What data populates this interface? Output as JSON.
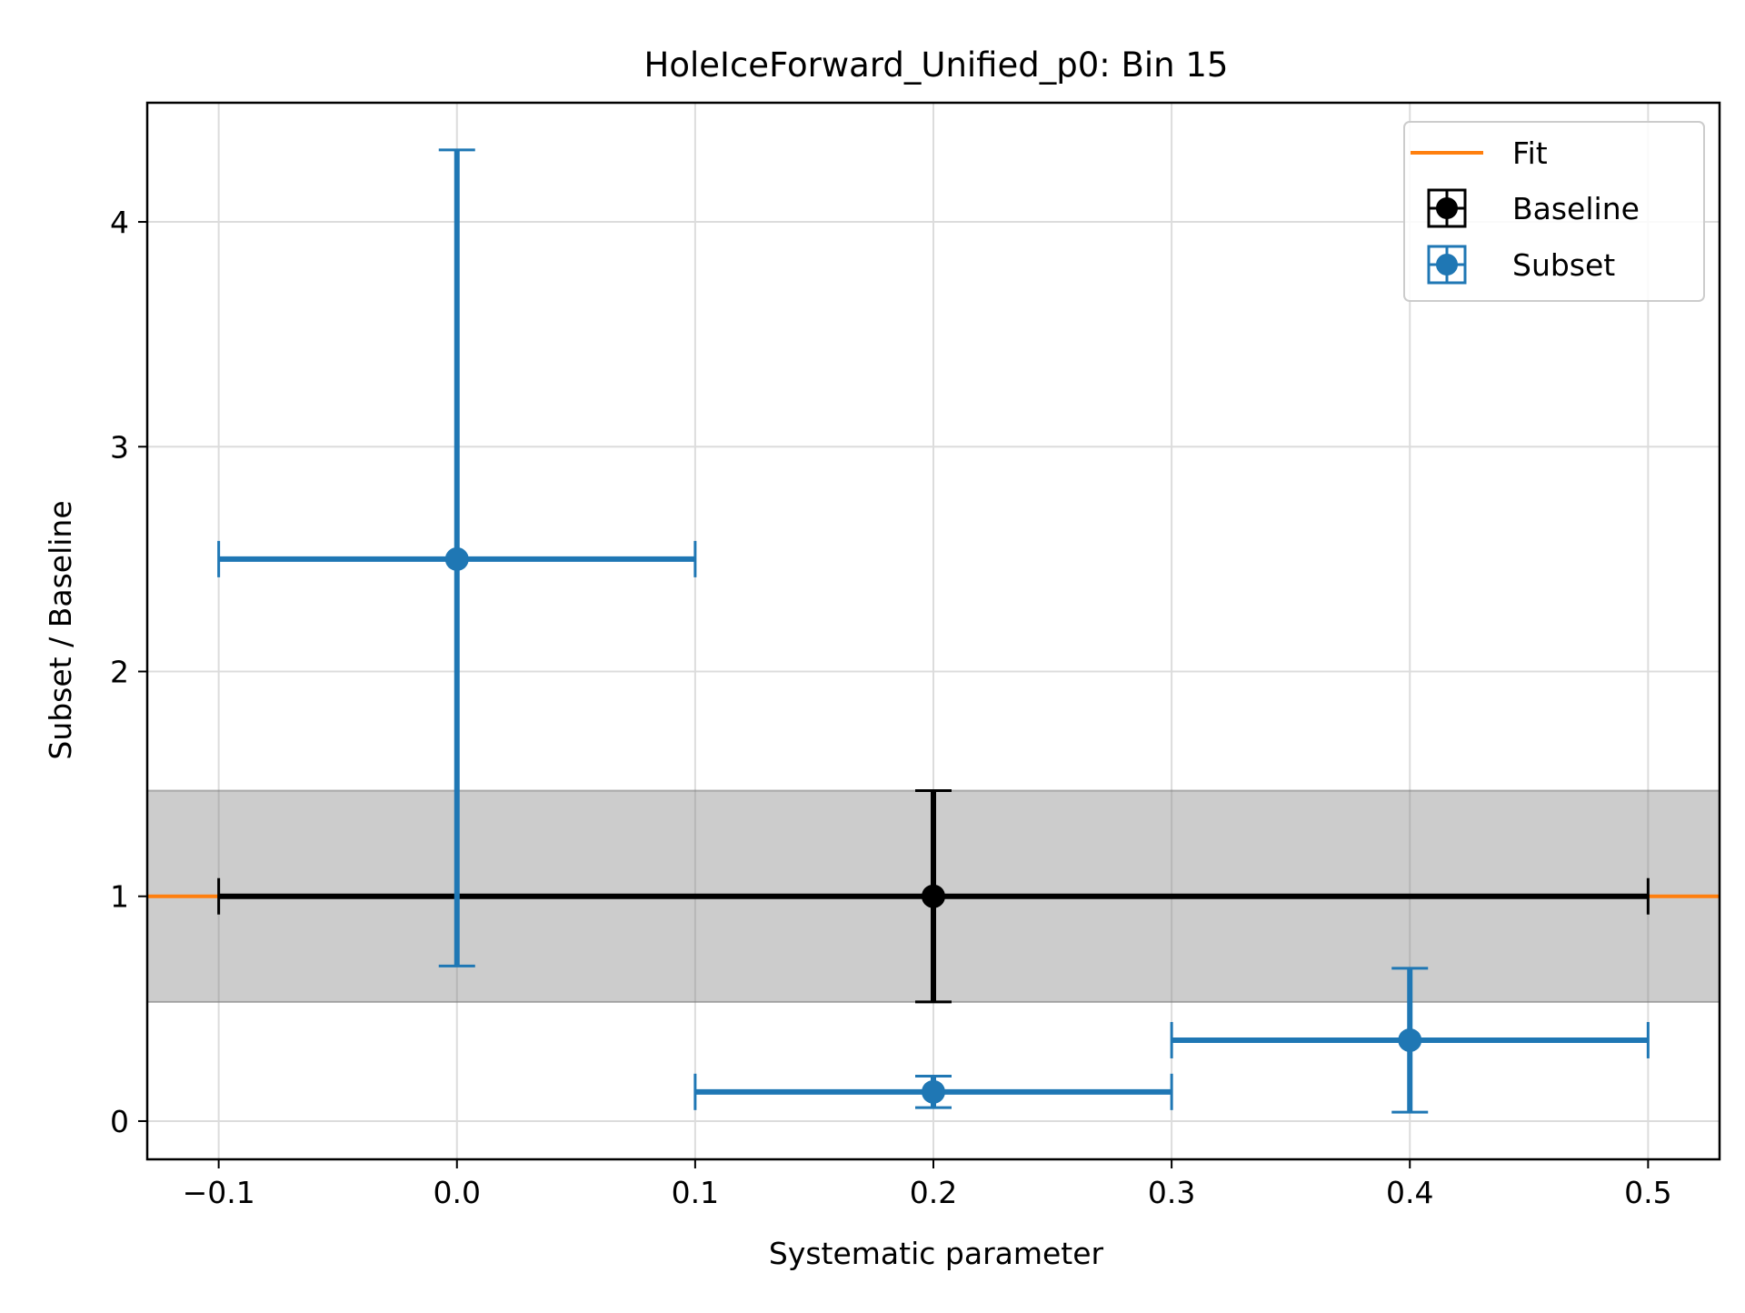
{
  "chart_data": {
    "type": "scatter",
    "title": "HoleIceForward_Unified_p0: Bin 15",
    "xlabel": "Systematic parameter",
    "ylabel": "Subset / Baseline",
    "xlim": [
      -0.13,
      0.53
    ],
    "ylim": [
      -0.17,
      4.53
    ],
    "xticks": [
      {
        "value": -0.1,
        "label": "−0.1"
      },
      {
        "value": 0.0,
        "label": "0.0"
      },
      {
        "value": 0.1,
        "label": "0.1"
      },
      {
        "value": 0.2,
        "label": "0.2"
      },
      {
        "value": 0.3,
        "label": "0.3"
      },
      {
        "value": 0.4,
        "label": "0.4"
      },
      {
        "value": 0.5,
        "label": "0.5"
      }
    ],
    "yticks": [
      {
        "value": 0,
        "label": "0"
      },
      {
        "value": 1,
        "label": "1"
      },
      {
        "value": 2,
        "label": "2"
      },
      {
        "value": 3,
        "label": "3"
      },
      {
        "value": 4,
        "label": "4"
      }
    ],
    "grid": true,
    "legend_position": "top-right",
    "legend": [
      {
        "label": "Fit",
        "kind": "line",
        "color": "#ff7f0e"
      },
      {
        "label": "Baseline",
        "kind": "errorbar",
        "color": "#000000"
      },
      {
        "label": "Subset",
        "kind": "errorbar",
        "color": "#1f77b4"
      }
    ],
    "fit": {
      "name": "Fit",
      "color": "#ff7f0e",
      "value": 1.0,
      "band": [
        0.53,
        1.47
      ]
    },
    "baseline": {
      "name": "Baseline",
      "color": "#000000",
      "points": [
        {
          "x": 0.2,
          "y": 1.0,
          "xerr": 0.3,
          "yerr": 0.47
        }
      ]
    },
    "subset": {
      "name": "Subset",
      "color": "#1f77b4",
      "points": [
        {
          "x": 0.0,
          "y": 2.5,
          "xerr": 0.1,
          "yerr_low": 1.81,
          "yerr_high": 1.82
        },
        {
          "x": 0.2,
          "y": 0.13,
          "xerr": 0.1,
          "yerr": 0.07
        },
        {
          "x": 0.4,
          "y": 0.36,
          "xerr": 0.1,
          "yerr": 0.32
        }
      ]
    }
  }
}
